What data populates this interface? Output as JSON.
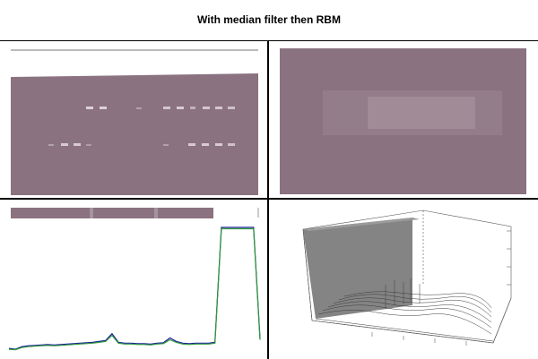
{
  "figure": {
    "title": "With median filter then RBM"
  },
  "panels": {
    "gel_image": {
      "tint": "#8a7280",
      "band_color": "#e6dbe2"
    },
    "zoom_image": {
      "tint": "#8a7280",
      "highlight": "#a7929e"
    },
    "profile_plot": {
      "strip_tint": "#8a7280",
      "series_colors": [
        "#1b1f9a",
        "#2f9a3a"
      ]
    },
    "surface_plot": {
      "wall_color": "#6e6e6e",
      "mesh_color": "#3a3a3a"
    }
  },
  "chart_data": {
    "type": "line",
    "series": [
      {
        "values": [
          8,
          6,
          12,
          14,
          15,
          16,
          17,
          16,
          17,
          18,
          19,
          20,
          21,
          22,
          24,
          26,
          42,
          22,
          20,
          20,
          19,
          19,
          18,
          20,
          21,
          32,
          24,
          20,
          19,
          20,
          20,
          20,
          22,
          180,
          180,
          180,
          180,
          180,
          180,
          30
        ]
      },
      {
        "values": [
          6,
          5,
          10,
          12,
          13,
          14,
          15,
          14,
          15,
          16,
          17,
          18,
          19,
          20,
          22,
          24,
          38,
          20,
          18,
          18,
          17,
          17,
          16,
          18,
          19,
          28,
          22,
          18,
          17,
          18,
          18,
          18,
          20,
          178,
          178,
          178,
          178,
          178,
          178,
          28
        ]
      }
    ]
  }
}
